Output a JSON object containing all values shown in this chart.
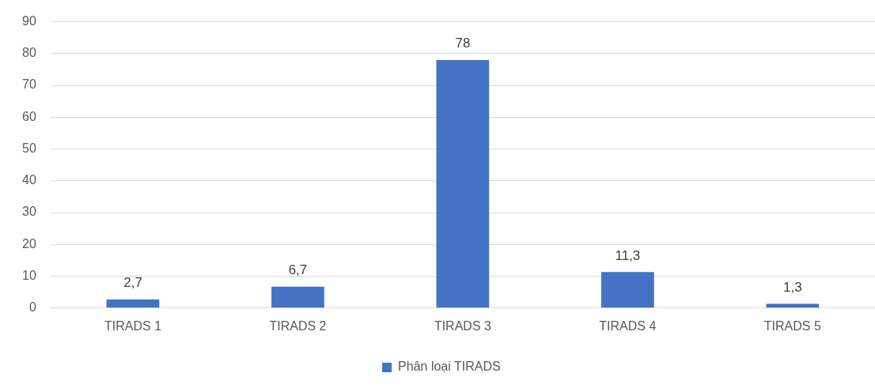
{
  "chart_data": {
    "type": "bar",
    "categories": [
      "TIRADS 1",
      "TIRADS 2",
      "TIRADS 3",
      "TIRADS 4",
      "TIRADS 5"
    ],
    "series": [
      {
        "name": "Phân loại TIRADS",
        "color": "#4472c4",
        "values": [
          2.7,
          6.7,
          78,
          11.3,
          1.3
        ],
        "value_labels": [
          "2,7",
          "6,7",
          "78",
          "11,3",
          "1,3"
        ]
      }
    ],
    "ylim": [
      0,
      90
    ],
    "yticks": [
      0,
      10,
      20,
      30,
      40,
      50,
      60,
      70,
      80,
      90
    ],
    "grid": "y",
    "legend": "bottom"
  }
}
